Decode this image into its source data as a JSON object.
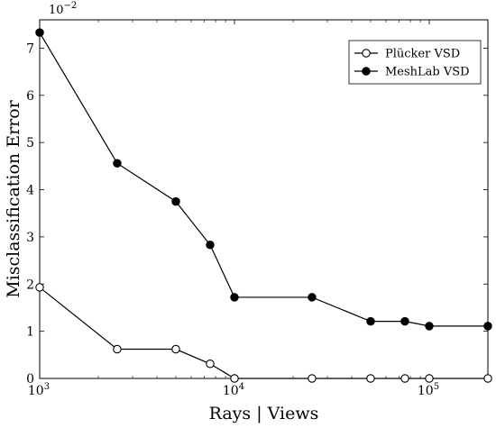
{
  "chart_data": {
    "type": "line",
    "xlabel": "Rays | Views",
    "ylabel": "Misclassification Error",
    "y_scale_note": "10",
    "y_scale_exp": "−2",
    "x_scale": "log",
    "xlim": [
      1000,
      200000
    ],
    "ylim": [
      0,
      7.6
    ],
    "grid": false,
    "legend_position": "top-right",
    "x_ticks": [
      {
        "value": 1000,
        "base": "10",
        "exp": "3"
      },
      {
        "value": 10000,
        "base": "10",
        "exp": "4"
      },
      {
        "value": 100000,
        "base": "10",
        "exp": "5"
      }
    ],
    "y_ticks": [
      {
        "value": 0,
        "label": "0"
      },
      {
        "value": 1,
        "label": "1"
      },
      {
        "value": 2,
        "label": "2"
      },
      {
        "value": 3,
        "label": "3"
      },
      {
        "value": 4,
        "label": "4"
      },
      {
        "value": 5,
        "label": "5"
      },
      {
        "value": 6,
        "label": "6"
      },
      {
        "value": 7,
        "label": "7"
      }
    ],
    "series": [
      {
        "name": "Plücker VSD",
        "marker": "open-circle",
        "color": "#000000",
        "x": [
          1000,
          2500,
          5000,
          7500,
          10000,
          25000,
          50000,
          75000,
          100000,
          200000
        ],
        "y": [
          1.93,
          0.62,
          0.62,
          0.31,
          0.0,
          0.0,
          0.0,
          0.0,
          0.0,
          0.0
        ]
      },
      {
        "name": "MeshLab VSD",
        "marker": "filled-circle",
        "color": "#000000",
        "x": [
          1000,
          2500,
          5000,
          7500,
          10000,
          25000,
          50000,
          75000,
          100000,
          200000
        ],
        "y": [
          7.33,
          4.56,
          3.75,
          2.83,
          1.72,
          1.72,
          1.21,
          1.21,
          1.11,
          1.11
        ]
      }
    ]
  }
}
